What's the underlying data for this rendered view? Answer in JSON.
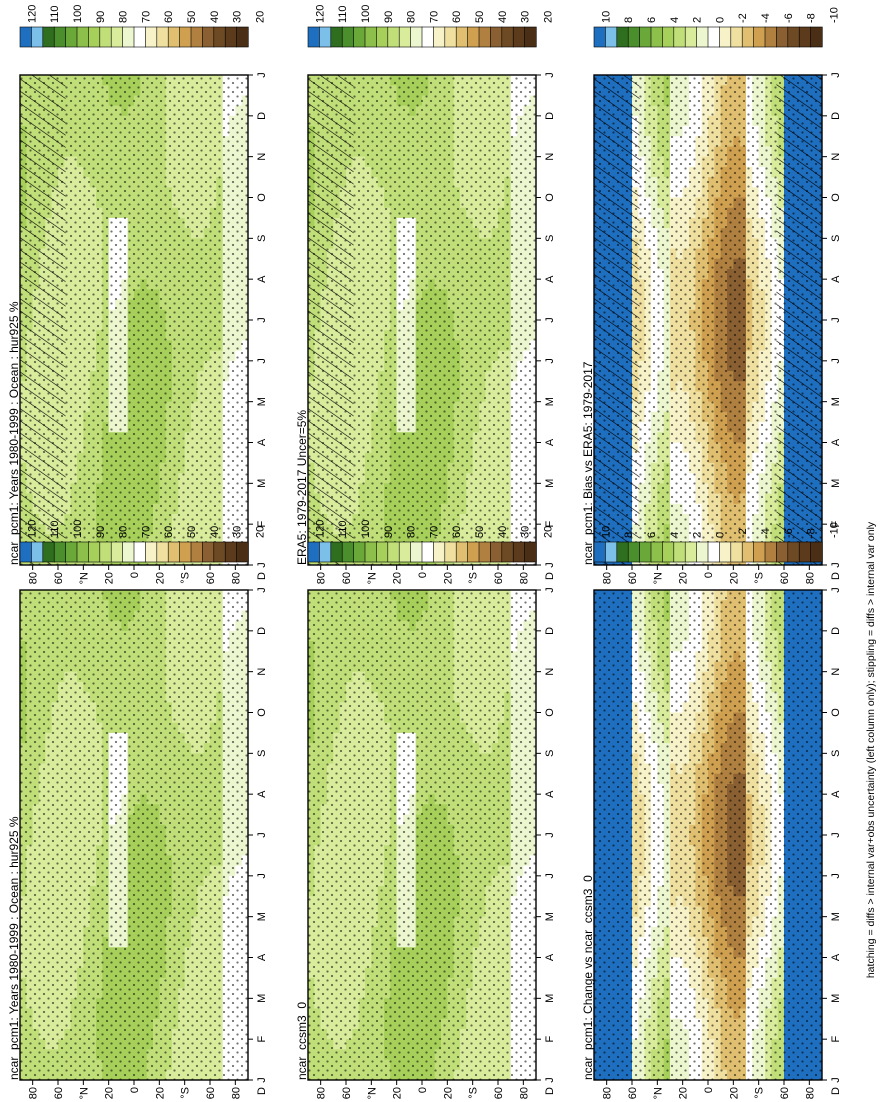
{
  "figure": {
    "footnote": "hatching = diffs > internal var+obs uncertainty (left column only); stippling = diffs > internal var only"
  },
  "chart_data": [
    {
      "id": "model-left",
      "type": "heatmap",
      "title": "ncar_pcm1: Years 1980-1999 : Ocean : hur925 %",
      "x_ticks": [
        "J",
        "F",
        "M",
        "A",
        "M",
        "J",
        "J",
        "A",
        "S",
        "O",
        "N",
        "D",
        "J"
      ],
      "y_ticks": [
        "80",
        "60",
        "°N",
        "20",
        "0",
        "20",
        "°S",
        "60",
        "80"
      ],
      "colorbar": [
        "120",
        "110",
        "100",
        "90",
        "80",
        "70",
        "60",
        "50",
        "40",
        "30",
        "20"
      ],
      "scale": "abs"
    },
    {
      "id": "model-right",
      "type": "heatmap",
      "title": "ncar_pcm1: Years 1980-1999 : Ocean : hur925 %",
      "x_ticks": [
        "J",
        "F",
        "M",
        "A",
        "M",
        "J",
        "J",
        "A",
        "S",
        "O",
        "N",
        "D",
        "J"
      ],
      "y_ticks": [
        "80",
        "60",
        "°N",
        "20",
        "0",
        "20",
        "°S",
        "60",
        "80"
      ],
      "colorbar": [
        "120",
        "110",
        "100",
        "90",
        "80",
        "70",
        "60",
        "50",
        "40",
        "30",
        "20"
      ],
      "scale": "abs"
    },
    {
      "id": "obs",
      "type": "heatmap",
      "title": "ERA5: 1979-2017 Uncer=5%",
      "x_ticks": [
        "J",
        "F",
        "M",
        "A",
        "M",
        "J",
        "J",
        "A",
        "S",
        "O",
        "N",
        "D",
        "J"
      ],
      "y_ticks": [
        "80",
        "60",
        "°N",
        "20",
        "0",
        "20",
        "°S",
        "60",
        "80"
      ],
      "colorbar": [
        "120",
        "110",
        "100",
        "90",
        "80",
        "70",
        "60",
        "50",
        "40",
        "30",
        "20"
      ],
      "scale": "abs"
    },
    {
      "id": "ref-model",
      "type": "heatmap",
      "title": "ncar_ccsm3_0",
      "x_ticks": [
        "J",
        "F",
        "M",
        "A",
        "M",
        "J",
        "J",
        "A",
        "S",
        "O",
        "N",
        "D",
        "J"
      ],
      "y_ticks": [
        "80",
        "60",
        "°N",
        "20",
        "0",
        "20",
        "°S",
        "60",
        "80"
      ],
      "colorbar": [
        "120",
        "110",
        "100",
        "90",
        "80",
        "70",
        "60",
        "50",
        "40",
        "30",
        "20"
      ],
      "scale": "abs"
    },
    {
      "id": "bias",
      "type": "heatmap",
      "title": "ncar_pcm1: Bias vs ERA5: 1979-2017",
      "x_ticks": [
        "J",
        "F",
        "M",
        "A",
        "M",
        "J",
        "J",
        "A",
        "S",
        "O",
        "N",
        "D",
        "J"
      ],
      "y_ticks": [
        "80",
        "60",
        "°N",
        "20",
        "0",
        "20",
        "°S",
        "60",
        "80"
      ],
      "colorbar": [
        "10",
        "8",
        "6",
        "4",
        "2",
        "0",
        "-2",
        "-4",
        "-6",
        "-8",
        "-10"
      ],
      "scale": "diff"
    },
    {
      "id": "change",
      "type": "heatmap",
      "title": "ncar_pcm1: Change vs ncar_ccsm3_0",
      "x_ticks": [
        "J",
        "F",
        "M",
        "A",
        "M",
        "J",
        "J",
        "A",
        "S",
        "O",
        "N",
        "D",
        "J"
      ],
      "y_ticks": [
        "80",
        "60",
        "°N",
        "20",
        "0",
        "20",
        "°S",
        "60",
        "80"
      ],
      "colorbar": [
        "10",
        "8",
        "6",
        "4",
        "2",
        "0",
        "-2",
        "-4",
        "-6",
        "-8",
        "-10"
      ],
      "scale": "diff"
    }
  ],
  "palette": {
    "abs": [
      "#1f6fc0",
      "#7cc0ea",
      "#2f6e1f",
      "#4b8f2c",
      "#6aa83a",
      "#8cc04a",
      "#a6d05a",
      "#c0df78",
      "#d8ec9c",
      "#ecf6cf",
      "#ffffff",
      "#f7f2c8",
      "#efe0a0",
      "#e0c070",
      "#cfa050",
      "#b08040",
      "#8a6032",
      "#6e4a24",
      "#5c3a1c",
      "#4a2e16"
    ],
    "diff": [
      "#1f6fc0",
      "#7cc0ea",
      "#2f6e1f",
      "#4b8f2c",
      "#6aa83a",
      "#8cc04a",
      "#a6d05a",
      "#c0df78",
      "#d8ec9c",
      "#ecf6cf",
      "#ffffff",
      "#f7f2c8",
      "#efe0a0",
      "#e0c070",
      "#cfa050",
      "#b08040",
      "#8a6032",
      "#6e4a24",
      "#5c3a1c",
      "#4a2e16"
    ]
  }
}
